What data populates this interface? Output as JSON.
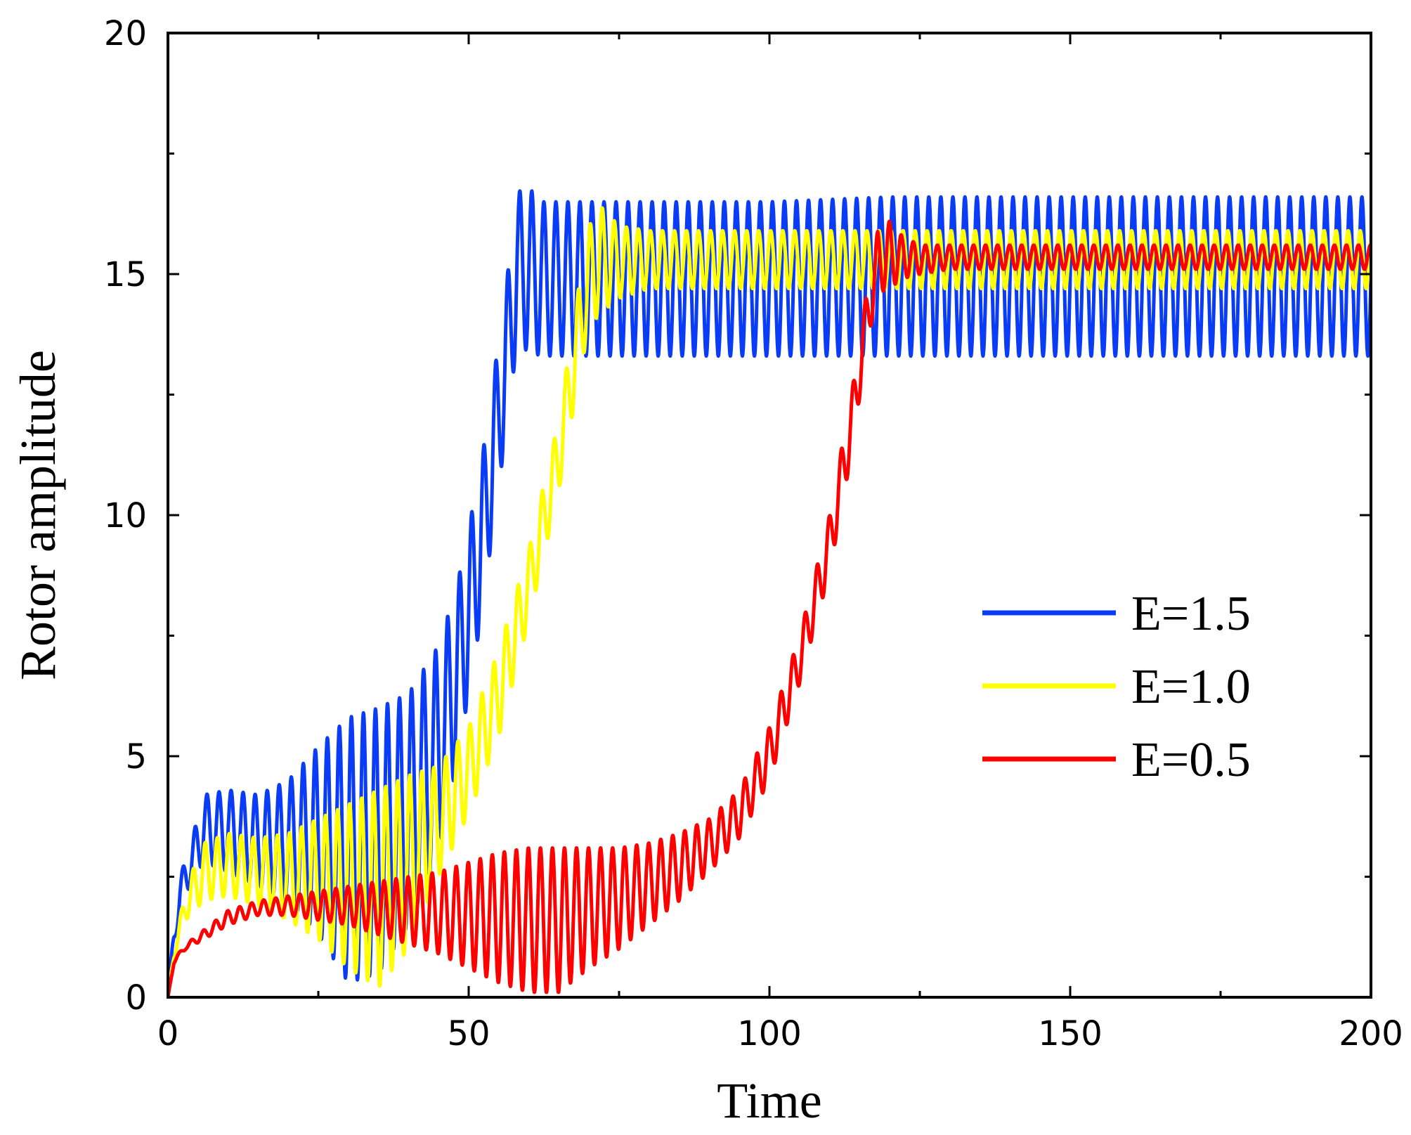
{
  "chart_data": {
    "type": "line",
    "title": "",
    "xlabel": "Time",
    "ylabel": "Rotor amplitude",
    "xlim": [
      0,
      200
    ],
    "ylim": [
      0,
      20
    ],
    "xticks": [
      0,
      50,
      100,
      150,
      200
    ],
    "yticks": [
      0,
      5,
      10,
      15,
      20
    ],
    "xtick_labels": [
      "0",
      "50",
      "100",
      "150",
      "200"
    ],
    "ytick_labels": [
      "0",
      "5",
      "10",
      "15",
      "20"
    ],
    "legend_position": "center-right",
    "series": [
      {
        "name": "E=1.5",
        "color": "#0a3cf5",
        "period": 2.0,
        "x": [
          0,
          1,
          2,
          4,
          6,
          10,
          15,
          20,
          25,
          30,
          35,
          40,
          45,
          48,
          52,
          56,
          58,
          60,
          62,
          65,
          70,
          80,
          100,
          120,
          150,
          200
        ],
        "upper": [
          0,
          1.5,
          2.5,
          3.3,
          4.2,
          4.3,
          4.2,
          4.5,
          5.2,
          5.8,
          6.0,
          6.3,
          7.3,
          8.5,
          11.0,
          14.5,
          16.7,
          16.8,
          16.5,
          16.5,
          16.5,
          16.5,
          16.5,
          16.6,
          16.6,
          16.6
        ],
        "lower": [
          0,
          1.0,
          1.8,
          2.4,
          2.8,
          2.6,
          2.3,
          2.0,
          1.3,
          0.3,
          0.5,
          1.5,
          3.0,
          4.8,
          7.8,
          11.5,
          13.5,
          13.4,
          13.3,
          13.3,
          13.3,
          13.3,
          13.3,
          13.3,
          13.3,
          13.3
        ]
      },
      {
        "name": "E=1.0",
        "color": "#ffff00",
        "period": 2.0,
        "x": [
          0,
          1,
          3,
          6,
          10,
          15,
          20,
          25,
          30,
          35,
          40,
          45,
          50,
          55,
          60,
          65,
          68,
          70,
          72,
          75,
          80,
          100,
          120,
          150,
          200
        ],
        "upper": [
          0,
          1.0,
          2.3,
          3.2,
          3.4,
          3.3,
          3.4,
          3.7,
          4.0,
          4.3,
          4.6,
          4.8,
          5.6,
          7.2,
          9.3,
          12.0,
          14.5,
          16.0,
          16.4,
          16.0,
          15.9,
          15.9,
          15.9,
          15.9,
          15.9
        ],
        "lower": [
          0,
          0.8,
          1.6,
          2.0,
          2.1,
          1.9,
          1.6,
          1.2,
          0.6,
          0.2,
          1.0,
          2.5,
          3.8,
          5.4,
          7.8,
          10.5,
          12.6,
          13.9,
          14.2,
          14.5,
          14.7,
          14.7,
          14.7,
          14.7,
          14.7
        ]
      },
      {
        "name": "E=0.5",
        "color": "#ff0000",
        "period": 2.0,
        "x": [
          0,
          1,
          3,
          6,
          10,
          15,
          20,
          25,
          30,
          35,
          40,
          45,
          50,
          55,
          60,
          65,
          70,
          75,
          80,
          85,
          90,
          95,
          100,
          105,
          110,
          114,
          116,
          118,
          120,
          122,
          125,
          130,
          140,
          150,
          200
        ],
        "upper": [
          0,
          0.8,
          1.1,
          1.4,
          1.8,
          2.0,
          2.1,
          2.2,
          2.3,
          2.4,
          2.5,
          2.6,
          2.8,
          3.0,
          3.1,
          3.1,
          3.1,
          3.1,
          3.2,
          3.4,
          3.7,
          4.3,
          5.6,
          7.5,
          10.0,
          12.8,
          14.5,
          15.9,
          16.1,
          15.8,
          15.6,
          15.6,
          15.6,
          15.6,
          15.6
        ],
        "lower": [
          0,
          0.7,
          1.0,
          1.2,
          1.5,
          1.7,
          1.7,
          1.6,
          1.5,
          1.3,
          1.1,
          0.9,
          0.6,
          0.3,
          0.1,
          0.1,
          0.6,
          1.0,
          1.5,
          2.0,
          2.6,
          3.3,
          4.5,
          6.5,
          8.8,
          11.5,
          13.4,
          14.6,
          14.7,
          14.9,
          15.0,
          15.1,
          15.1,
          15.1,
          15.1
        ]
      }
    ]
  }
}
